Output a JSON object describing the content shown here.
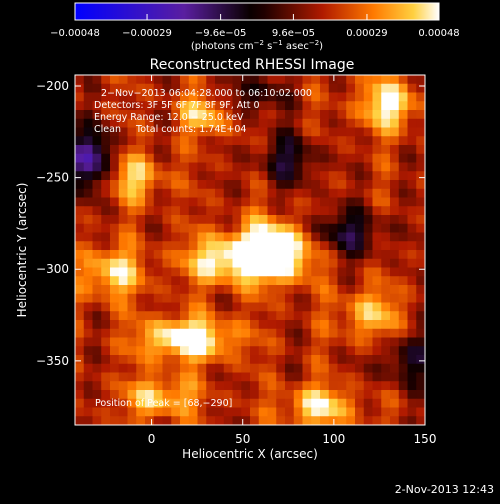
{
  "chart_data": {
    "type": "heatmap",
    "title": "Reconstructed RHESSI Image",
    "xlabel": "Heliocentric X (arcsec)",
    "ylabel": "Heliocentric Y (arcsec)",
    "xlim": [
      -42,
      150
    ],
    "ylim": [
      -385,
      -194
    ],
    "x_ticks": [
      0,
      50,
      100,
      150
    ],
    "x_tick_labels": [
      "0",
      "50",
      "100",
      "150"
    ],
    "y_ticks": [
      -200,
      -250,
      -300,
      -350
    ],
    "y_tick_labels": [
      "−200",
      "−250",
      "−300",
      "−350"
    ],
    "colorbar": {
      "range": [
        -0.00048,
        0.00048
      ],
      "ticks": [
        -0.00048,
        -0.00029,
        -9.6e-05,
        9.6e-05,
        0.00029,
        0.00048
      ],
      "tick_labels": [
        "−0.00048",
        "−0.00029",
        "−9.6e−05",
        "9.6e−05",
        "0.00029",
        "0.00048"
      ],
      "unit_main": "(photons cm",
      "unit_exp1": "−2",
      "unit_mid": " s",
      "unit_exp2": "−1",
      "unit_end": " asec",
      "unit_exp3": "−2",
      "unit_close": ")"
    },
    "annotations": [
      "2−Nov−2013 06:04:28.000 to 06:10:02.000",
      "Detectors: 3F 5F 6F 7F 8F 9F, Att 0",
      "Energy Range: 12.0 − 25.0 keV",
      "Clean     Total counts: 1.74E+04"
    ],
    "peak_label": "Position of Peak = [68,−290]",
    "peak": [
      68,
      -290
    ],
    "sources": [
      {
        "x": 68,
        "y": -290,
        "sx": 14,
        "sy": 11,
        "amp": 1.0
      },
      {
        "x": 40,
        "y": -295,
        "sx": 16,
        "sy": 9,
        "amp": 0.62
      },
      {
        "x": 20,
        "y": -338,
        "sx": 18,
        "sy": 8,
        "amp": 0.78
      },
      {
        "x": -22,
        "y": -302,
        "sx": 12,
        "sy": 10,
        "amp": 0.55
      },
      {
        "x": 130,
        "y": -210,
        "sx": 12,
        "sy": 10,
        "amp": 0.6
      },
      {
        "x": 92,
        "y": -375,
        "sx": 14,
        "sy": 8,
        "amp": 0.55
      },
      {
        "x": 120,
        "y": -325,
        "sx": 12,
        "sy": 10,
        "amp": 0.45
      },
      {
        "x": -10,
        "y": -250,
        "sx": 12,
        "sy": 9,
        "amp": 0.48
      },
      {
        "x": 30,
        "y": -215,
        "sx": 10,
        "sy": 8,
        "amp": 0.5
      },
      {
        "x": 5,
        "y": -370,
        "sx": 14,
        "sy": 8,
        "amp": 0.5
      },
      {
        "x": -35,
        "y": -240,
        "sx": 10,
        "sy": 12,
        "amp": -0.75
      },
      {
        "x": 105,
        "y": -280,
        "sx": 16,
        "sy": 9,
        "amp": -0.5
      },
      {
        "x": 75,
        "y": -240,
        "sx": 12,
        "sy": 10,
        "amp": -0.45
      },
      {
        "x": 140,
        "y": -350,
        "sx": 12,
        "sy": 10,
        "amp": -0.4
      },
      {
        "x": 55,
        "y": -205,
        "sx": 12,
        "sy": 8,
        "amp": -0.4
      }
    ]
  },
  "footer": {
    "timestamp": "2-Nov-2013 12:43"
  }
}
